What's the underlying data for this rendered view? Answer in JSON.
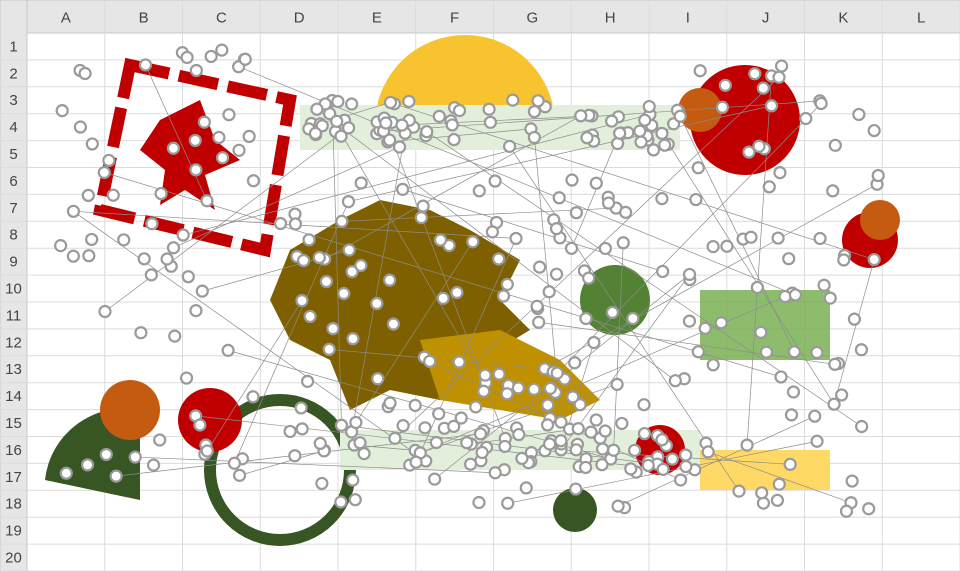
{
  "spreadsheet": {
    "columns": [
      "A",
      "B",
      "C",
      "D",
      "E",
      "F",
      "G",
      "H",
      "I",
      "J",
      "K",
      "L"
    ],
    "rows": [
      "1",
      "2",
      "3",
      "4",
      "5",
      "6",
      "7",
      "8",
      "9",
      "10",
      "11",
      "12",
      "13",
      "14",
      "15",
      "16",
      "17",
      "18",
      "19",
      "20"
    ]
  }
}
